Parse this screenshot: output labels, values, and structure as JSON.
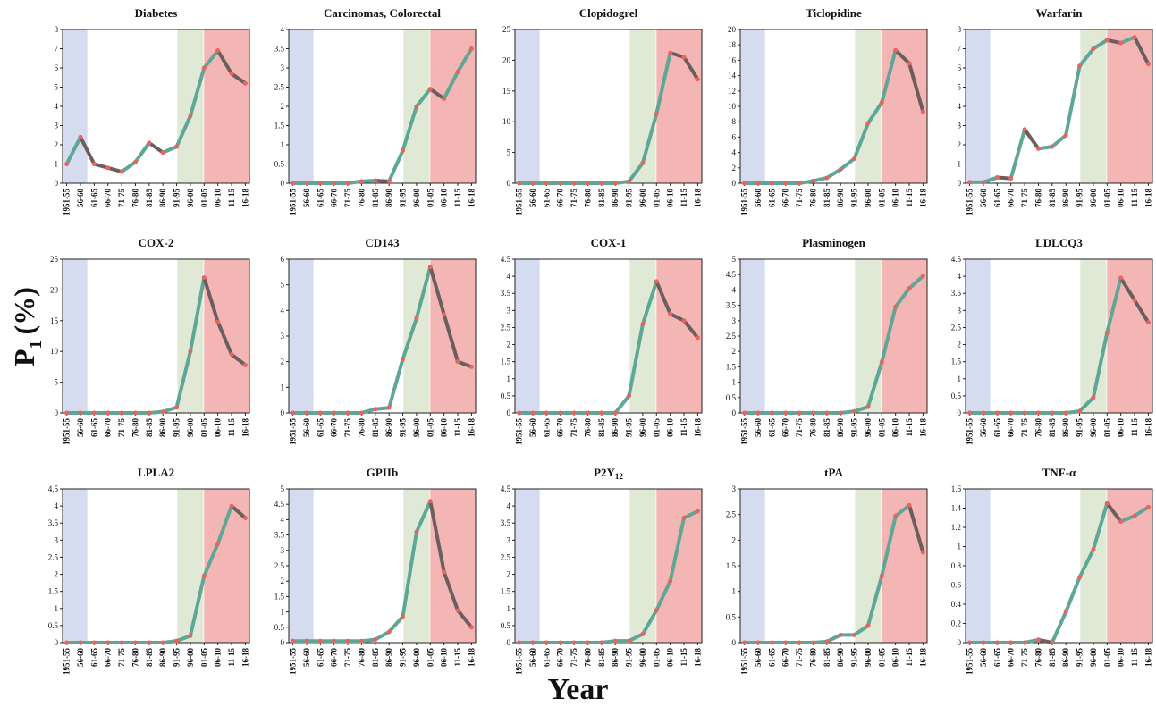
{
  "figure": {
    "ylabel_main": "P",
    "ylabel_sub": "1",
    "ylabel_unit": "(%)",
    "xlabel": "Year",
    "colors": {
      "band_early": "#d5dcf0",
      "band_mid": "#dfe9d6",
      "band_late": "#f4b6b4",
      "line_teal": "#5ea696",
      "line_dark": "#6b5e5e",
      "marker": "#e8645c"
    }
  },
  "chart_data": [
    {
      "type": "line",
      "title": "Diabetes",
      "title_sub": "",
      "ylim": [
        0,
        8
      ],
      "yticks": [
        "0",
        "1",
        "2",
        "3",
        "4",
        "5",
        "6",
        "7",
        "8"
      ],
      "categories": [
        "1951-55",
        "56-60",
        "61-65",
        "66-70",
        "71-75",
        "76-80",
        "81-85",
        "86-90",
        "91-95",
        "96-00",
        "01-05",
        "06-10",
        "11-15",
        "16-18"
      ],
      "values": [
        1.0,
        2.4,
        1.0,
        0.8,
        0.6,
        1.1,
        2.1,
        1.6,
        1.9,
        3.5,
        6.0,
        6.9,
        5.7,
        5.2
      ]
    },
    {
      "type": "line",
      "title": "Carcinomas, Colorectal",
      "title_sub": "",
      "ylim": [
        0,
        4
      ],
      "yticks": [
        "0",
        "0.5",
        "1",
        "1.5",
        "2",
        "2.5",
        "3",
        "3.5",
        "4"
      ],
      "categories": [
        "1951-55",
        "56-60",
        "61-65",
        "66-70",
        "71-75",
        "76-80",
        "81-85",
        "86-90",
        "91-95",
        "96-00",
        "01-05",
        "06-10",
        "11-15",
        "16-18"
      ],
      "values": [
        0,
        0,
        0,
        0,
        0,
        0.05,
        0.07,
        0.05,
        0.85,
        2.0,
        2.45,
        2.2,
        2.9,
        3.5
      ]
    },
    {
      "type": "line",
      "title": "Clopidogrel",
      "title_sub": "",
      "ylim": [
        0,
        25
      ],
      "yticks": [
        "0",
        "5",
        "10",
        "15",
        "20",
        "25"
      ],
      "categories": [
        "1951-55",
        "56-60",
        "61-65",
        "66-70",
        "71-75",
        "76-80",
        "81-85",
        "86-90",
        "91-95",
        "96-00",
        "01-05",
        "06-10",
        "11-15",
        "16-18"
      ],
      "values": [
        0,
        0,
        0,
        0,
        0,
        0,
        0,
        0,
        0.3,
        3.3,
        11.3,
        21.2,
        20.5,
        16.9
      ]
    },
    {
      "type": "line",
      "title": "Ticlopidine",
      "title_sub": "",
      "ylim": [
        0,
        20
      ],
      "yticks": [
        "0",
        "2",
        "4",
        "6",
        "8",
        "10",
        "12",
        "14",
        "16",
        "18",
        "20"
      ],
      "categories": [
        "1951-55",
        "56-60",
        "61-65",
        "66-70",
        "71-75",
        "76-80",
        "81-85",
        "86-90",
        "91-95",
        "96-00",
        "01-05",
        "06-10",
        "11-15",
        "16-18"
      ],
      "values": [
        0,
        0,
        0,
        0,
        0,
        0.3,
        0.7,
        1.8,
        3.2,
        7.8,
        10.5,
        17.3,
        15.6,
        9.3
      ]
    },
    {
      "type": "line",
      "title": "Warfarin",
      "title_sub": "",
      "ylim": [
        0,
        8
      ],
      "yticks": [
        "0",
        "1",
        "2",
        "3",
        "4",
        "5",
        "6",
        "7",
        "8"
      ],
      "categories": [
        "1951-55",
        "56-60",
        "61-65",
        "66-70",
        "71-75",
        "76-80",
        "81-85",
        "86-90",
        "91-95",
        "96-00",
        "01-05",
        "06-10",
        "11-15",
        "16-18"
      ],
      "values": [
        0.05,
        0.05,
        0.3,
        0.25,
        2.8,
        1.8,
        1.9,
        2.5,
        6.1,
        7.0,
        7.45,
        7.3,
        7.6,
        6.2
      ]
    },
    {
      "type": "line",
      "title": "COX-2",
      "title_sub": "",
      "ylim": [
        0,
        25
      ],
      "yticks": [
        "0",
        "5",
        "10",
        "15",
        "20",
        "25"
      ],
      "categories": [
        "1951-55",
        "56-60",
        "61-65",
        "66-70",
        "71-75",
        "76-80",
        "81-85",
        "86-90",
        "91-95",
        "96-00",
        "01-05",
        "06-10",
        "11-15",
        "16-18"
      ],
      "values": [
        0,
        0,
        0,
        0,
        0,
        0,
        0,
        0.2,
        0.9,
        10.0,
        22.0,
        14.8,
        9.5,
        7.8
      ]
    },
    {
      "type": "line",
      "title": "CD143",
      "title_sub": "",
      "ylim": [
        0,
        6
      ],
      "yticks": [
        "0",
        "1",
        "2",
        "3",
        "4",
        "5",
        "6"
      ],
      "categories": [
        "1951-55",
        "56-60",
        "61-65",
        "66-70",
        "71-75",
        "76-80",
        "81-85",
        "86-90",
        "91-95",
        "96-00",
        "01-05",
        "06-10",
        "11-15",
        "16-18"
      ],
      "values": [
        0,
        0,
        0,
        0,
        0,
        0,
        0.15,
        0.2,
        2.1,
        3.7,
        5.7,
        3.85,
        2.0,
        1.8
      ]
    },
    {
      "type": "line",
      "title": "COX-1",
      "title_sub": "",
      "ylim": [
        0,
        4.5
      ],
      "yticks": [
        "0",
        "0.5",
        "1",
        "1.5",
        "2",
        "2.5",
        "3",
        "3.5",
        "4",
        "4.5"
      ],
      "categories": [
        "1951-55",
        "56-60",
        "61-65",
        "66-70",
        "71-75",
        "76-80",
        "81-85",
        "86-90",
        "91-95",
        "96-00",
        "01-05",
        "06-10",
        "11-15",
        "16-18"
      ],
      "values": [
        0,
        0,
        0,
        0,
        0,
        0,
        0,
        0,
        0.5,
        2.6,
        3.85,
        2.9,
        2.7,
        2.2
      ]
    },
    {
      "type": "line",
      "title": "Plasminogen",
      "title_sub": "",
      "ylim": [
        0,
        5
      ],
      "yticks": [
        "0",
        "0.5",
        "1",
        "1.5",
        "2",
        "2.5",
        "3",
        "3.5",
        "4",
        "4.5",
        "5"
      ],
      "categories": [
        "1951-55",
        "56-60",
        "61-65",
        "66-70",
        "71-75",
        "76-80",
        "81-85",
        "86-90",
        "91-95",
        "96-00",
        "01-05",
        "06-10",
        "11-15",
        "16-18"
      ],
      "values": [
        0,
        0,
        0,
        0,
        0,
        0,
        0,
        0,
        0.05,
        0.2,
        1.65,
        3.45,
        4.05,
        4.45
      ]
    },
    {
      "type": "line",
      "title": "LDLCQ3",
      "title_sub": "",
      "ylim": [
        0,
        4.5
      ],
      "yticks": [
        "0",
        "0.5",
        "1",
        "1.5",
        "2",
        "2.5",
        "3",
        "3.5",
        "4",
        "4.5"
      ],
      "categories": [
        "1951-55",
        "56-60",
        "61-65",
        "66-70",
        "71-75",
        "76-80",
        "81-85",
        "86-90",
        "91-95",
        "96-00",
        "01-05",
        "06-10",
        "11-15",
        "16-18"
      ],
      "values": [
        0,
        0,
        0,
        0,
        0,
        0,
        0,
        0,
        0.05,
        0.45,
        2.35,
        3.95,
        3.3,
        2.65
      ]
    },
    {
      "type": "line",
      "title": "LPLA2",
      "title_sub": "",
      "ylim": [
        0,
        4.5
      ],
      "yticks": [
        "0",
        "0.5",
        "1",
        "1.5",
        "2",
        "2.5",
        "3",
        "3.5",
        "4",
        "4.5"
      ],
      "categories": [
        "1951-55",
        "56-60",
        "61-65",
        "66-70",
        "71-75",
        "76-80",
        "81-85",
        "86-90",
        "91-95",
        "96-00",
        "01-05",
        "06-10",
        "11-15",
        "16-18"
      ],
      "values": [
        0,
        0,
        0,
        0,
        0,
        0,
        0,
        0,
        0.05,
        0.2,
        1.95,
        2.9,
        4.0,
        3.65
      ]
    },
    {
      "type": "line",
      "title": "GPIIb",
      "title_sub": "",
      "ylim": [
        0,
        5
      ],
      "yticks": [
        "0",
        "0.5",
        "1",
        "1.5",
        "2",
        "2.5",
        "3",
        "3.5",
        "4",
        "4.5",
        "5"
      ],
      "categories": [
        "1951-55",
        "56-60",
        "61-65",
        "66-70",
        "71-75",
        "76-80",
        "81-85",
        "86-90",
        "91-95",
        "96-00",
        "01-05",
        "06-10",
        "11-15",
        "16-18"
      ],
      "values": [
        0.05,
        0.05,
        0.05,
        0.05,
        0.05,
        0.05,
        0.1,
        0.35,
        0.85,
        3.6,
        4.6,
        2.3,
        1.05,
        0.5
      ]
    },
    {
      "type": "line",
      "title": "P2Y",
      "title_sub": "12",
      "ylim": [
        0,
        4.5
      ],
      "yticks": [
        "0",
        "0.5",
        "1",
        "1.5",
        "2",
        "2.5",
        "3",
        "3.5",
        "4",
        "4.5"
      ],
      "categories": [
        "1951-55",
        "56-60",
        "61-65",
        "66-70",
        "71-75",
        "76-80",
        "81-85",
        "86-90",
        "91-95",
        "96-00",
        "01-05",
        "06-10",
        "11-15",
        "16-18"
      ],
      "values": [
        0,
        0,
        0,
        0,
        0,
        0,
        0,
        0.05,
        0.05,
        0.25,
        0.95,
        1.8,
        3.65,
        3.85
      ]
    },
    {
      "type": "line",
      "title": "tPA",
      "title_sub": "",
      "ylim": [
        0,
        3
      ],
      "yticks": [
        "0",
        "0.5",
        "1",
        "1.5",
        "2",
        "2.5",
        "3"
      ],
      "categories": [
        "1951-55",
        "56-60",
        "61-65",
        "66-70",
        "71-75",
        "76-80",
        "81-85",
        "86-90",
        "91-95",
        "96-00",
        "01-05",
        "06-10",
        "11-15",
        "16-18"
      ],
      "values": [
        0,
        0,
        0,
        0,
        0,
        0,
        0.02,
        0.15,
        0.15,
        0.33,
        1.3,
        2.47,
        2.68,
        1.76
      ]
    },
    {
      "type": "line",
      "title": "TNF-α",
      "title_sub": "",
      "ylim": [
        0,
        1.6
      ],
      "yticks": [
        "0",
        "0.2",
        "0.4",
        "0.6",
        "0.8",
        "1",
        "1.2",
        "1.4",
        "1.6"
      ],
      "categories": [
        "1951-55",
        "56-60",
        "61-65",
        "66-70",
        "71-75",
        "76-80",
        "81-85",
        "86-90",
        "91-95",
        "96-00",
        "01-05",
        "06-10",
        "11-15",
        "16-18"
      ],
      "values": [
        0,
        0,
        0,
        0,
        0,
        0.03,
        0,
        0.32,
        0.68,
        0.97,
        1.45,
        1.26,
        1.32,
        1.41
      ]
    }
  ]
}
